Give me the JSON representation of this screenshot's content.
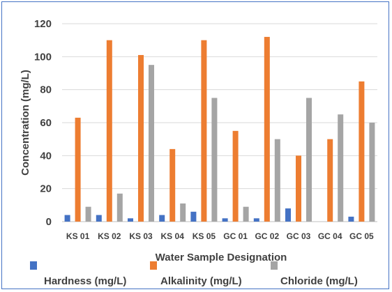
{
  "chart_data": {
    "type": "bar",
    "title": "",
    "xlabel": "Water Sample Designation",
    "ylabel": "Concentration (mg/L)",
    "ylim": [
      0,
      120
    ],
    "yticks": [
      0,
      20,
      40,
      60,
      80,
      100,
      120
    ],
    "grid": true,
    "legend_position": "bottom",
    "categories": [
      "KS 01",
      "KS 02",
      "KS 03",
      "KS 04",
      "KS 05",
      "GC 01",
      "GC 02",
      "GC 03",
      "GC 04",
      "GC 05"
    ],
    "series": [
      {
        "name": "Hardness (mg/L)",
        "color": "#4472c4",
        "values": [
          4,
          4,
          2,
          4,
          6,
          2,
          2,
          8,
          0,
          3
        ]
      },
      {
        "name": "Alkalinity (mg/L)",
        "color": "#ed7d31",
        "values": [
          63,
          110,
          101,
          44,
          110,
          55,
          112,
          40,
          50,
          85
        ]
      },
      {
        "name": "Chloride (mg/L)",
        "color": "#a5a5a5",
        "values": [
          9,
          17,
          95,
          11,
          75,
          9,
          50,
          75,
          65,
          60
        ]
      }
    ]
  }
}
